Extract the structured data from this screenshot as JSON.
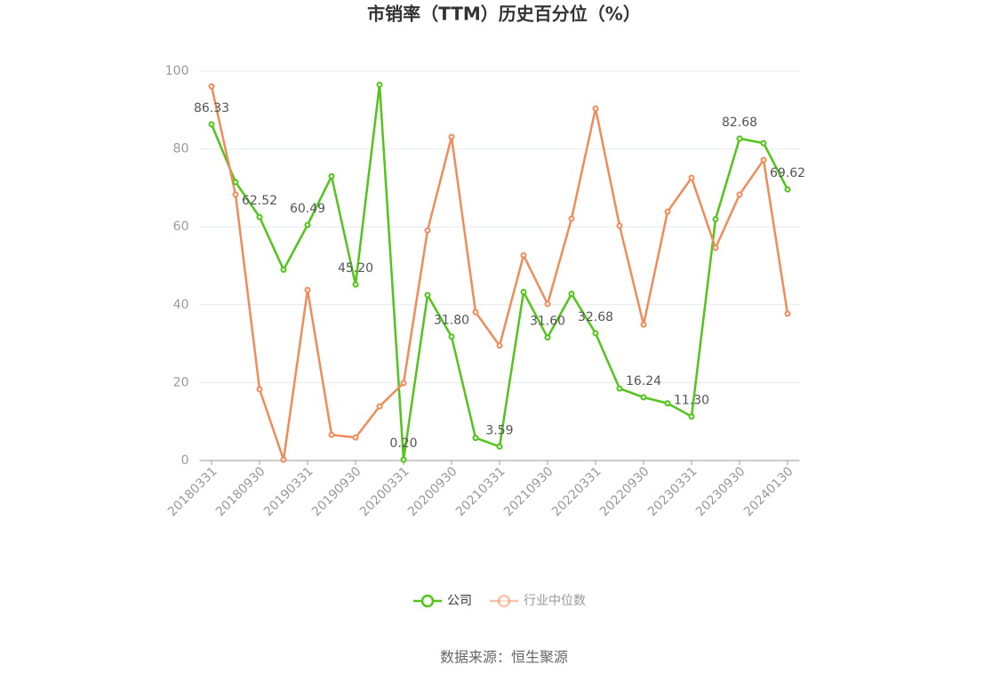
{
  "chart_data": {
    "type": "line",
    "title": "市销率（TTM）历史百分位（%）",
    "categories": [
      "20180331",
      null,
      "20180930",
      null,
      "20190331",
      null,
      "20190930",
      null,
      "20200331",
      null,
      "20200930",
      null,
      "20210331",
      null,
      "20210930",
      null,
      "20220331",
      null,
      "20220930",
      null,
      "20230331",
      null,
      "20230930",
      null,
      "20240130"
    ],
    "series": [
      {
        "name": "公司",
        "color": "#52c41a",
        "values": [
          86.33,
          71.5,
          62.52,
          49,
          60.49,
          73,
          45.2,
          96.5,
          0.2,
          42.5,
          31.8,
          5.8,
          3.59,
          43.3,
          31.6,
          42.8,
          32.68,
          18.5,
          16.24,
          14.7,
          11.3,
          62,
          82.68,
          81.5,
          69.62
        ],
        "value_labels": [
          "86.33",
          null,
          "62.52",
          null,
          "60.49",
          null,
          "45.20",
          null,
          "0.20",
          null,
          "31.80",
          null,
          "3.59",
          null,
          "31.60",
          null,
          "32.68",
          null,
          "16.24",
          null,
          "11.30",
          null,
          "82.68",
          null,
          "69.62"
        ]
      },
      {
        "name": "行业中位数",
        "color": "#f08c5a",
        "values": [
          96.1,
          68.3,
          18.3,
          0.2,
          43.8,
          6.6,
          5.9,
          13.9,
          19.9,
          59.1,
          83.1,
          38.1,
          29.5,
          52.7,
          40.2,
          62.1,
          90.4,
          60.3,
          34.9,
          63.9,
          72.6,
          54.6,
          68.3,
          77.2,
          37.7
        ]
      }
    ],
    "ylim": [
      0,
      100
    ],
    "yticks": [
      0,
      20,
      40,
      60,
      80,
      100
    ],
    "grid": true,
    "source": "数据来源：恒生聚源"
  }
}
